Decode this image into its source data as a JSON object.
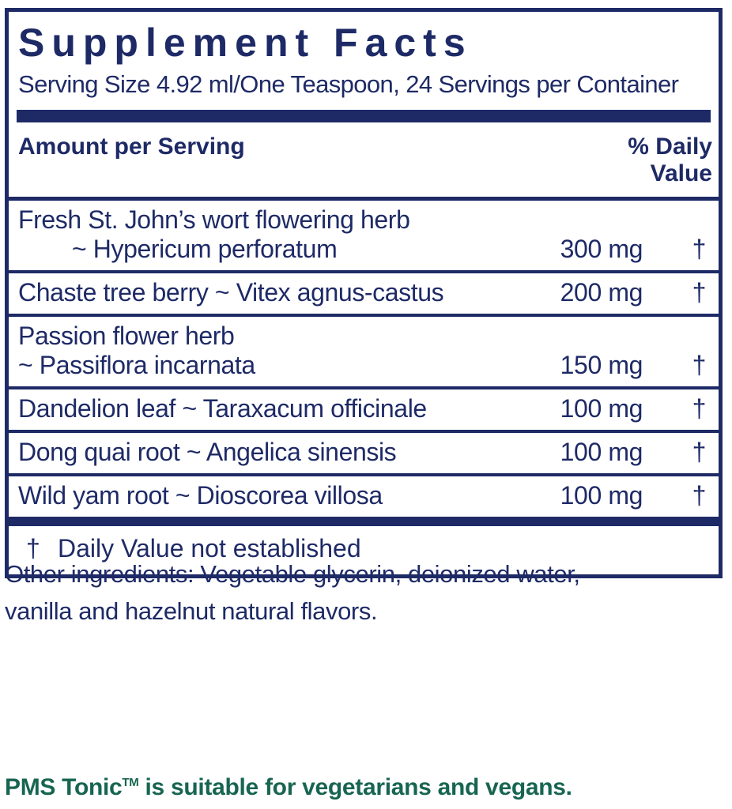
{
  "colors": {
    "navy": "#1e2a66",
    "green": "#176550"
  },
  "panel": {
    "title": "Supplement Facts",
    "serving_line": "Serving Size 4.92 ml/One Teaspoon, 24 Servings per Container",
    "header": {
      "amount": "Amount per Serving",
      "daily_value_line1": "% Daily",
      "daily_value_line2": "Value"
    },
    "rows": [
      {
        "line1": "Fresh St. John’s wort flowering herb",
        "line2": "~ Hypericum perforatum",
        "amount": "300 mg",
        "daily_value": "†"
      },
      {
        "line1": "Chaste tree berry ~ Vitex agnus-castus",
        "amount": "200 mg",
        "daily_value": "†"
      },
      {
        "line1": "Passion flower herb",
        "line2": "~ Passiflora incarnata",
        "amount": "150 mg",
        "daily_value": "†"
      },
      {
        "line1": "Dandelion leaf ~ Taraxacum officinale",
        "amount": "100 mg",
        "daily_value": "†"
      },
      {
        "line1": "Dong quai root ~ Angelica sinensis",
        "amount": "100 mg",
        "daily_value": "†"
      },
      {
        "line1": "Wild yam root ~ Dioscorea villosa",
        "amount": "100 mg",
        "daily_value": "†"
      }
    ],
    "footnote": {
      "symbol": "†",
      "text": "Daily Value not established"
    }
  },
  "other_ingredients": {
    "line1": "Other ingredients: Vegetable glycerin, deionized water,",
    "line2": "vanilla and hazelnut natural flavors."
  },
  "bottom_note": {
    "product": "PMS Tonic",
    "trademark": "TM",
    "text": " is suitable for vegetarians and vegans."
  }
}
